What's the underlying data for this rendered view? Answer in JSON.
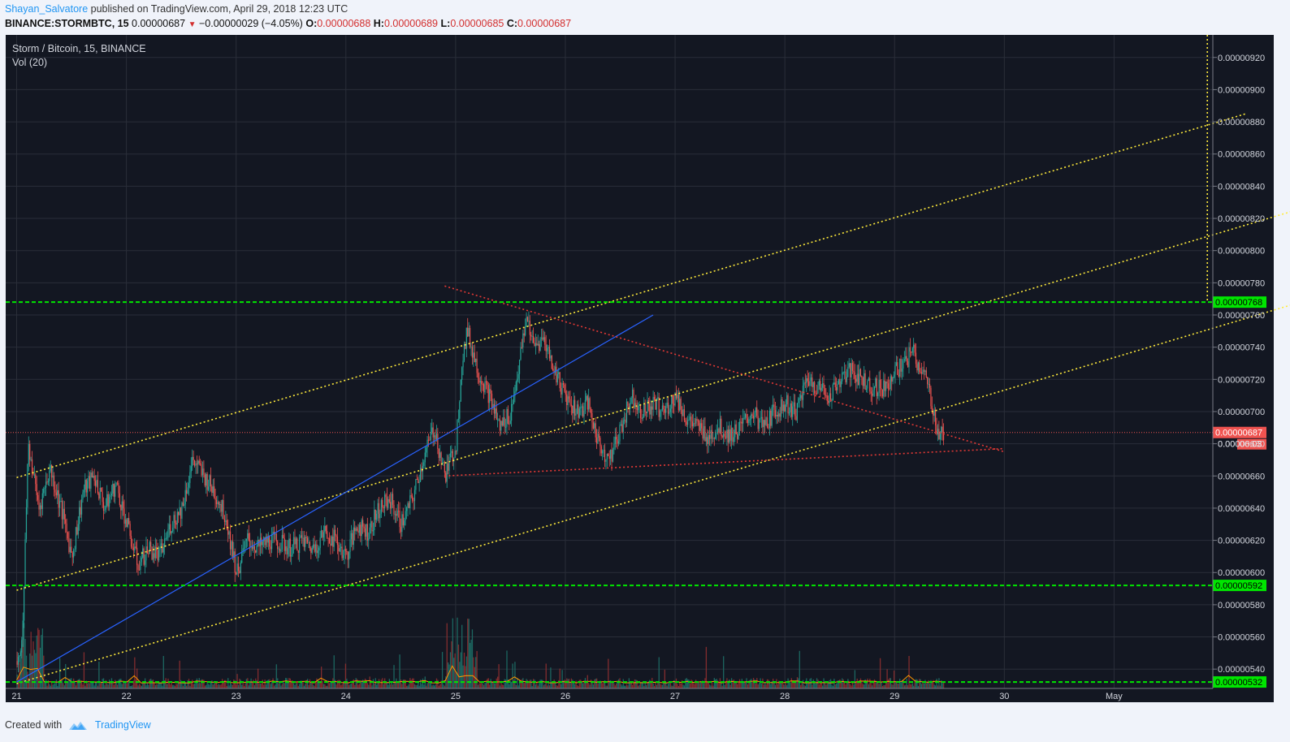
{
  "header": {
    "author": "Shayan_Salvatore",
    "published": "published on TradingView.com, April 29, 2018 12:23 UTC",
    "symbol": "BINANCE:STORMBTC, 15",
    "last": "0.00000687",
    "change": "−0.00000029 (−4.05%)",
    "o_label": "O:",
    "o_value": "0.00000688",
    "h_label": "H:",
    "h_value": "0.00000689",
    "l_label": "L:",
    "l_value": "0.00000685",
    "c_label": "C:",
    "c_value": "0.00000687"
  },
  "footer": {
    "created": "Created with",
    "brand": "TradingView"
  },
  "chart_data": {
    "type": "line",
    "title": "Storm / Bitcoin, 15, BINANCE",
    "indicator": "Vol (20)",
    "y_axis_ticks": [
      "0.00000540",
      "0.00000560",
      "0.00000580",
      "0.00000600",
      "0.00000620",
      "0.00000640",
      "0.00000660",
      "0.00000680",
      "0.00000700",
      "0.00000720",
      "0.00000740",
      "0.00000760",
      "0.00000780",
      "0.00000800",
      "0.00000820",
      "0.00000840",
      "0.00000860",
      "0.00000880",
      "0.00000900",
      "0.00000920"
    ],
    "x_axis_ticks": [
      "21",
      "22",
      "23",
      "24",
      "25",
      "26",
      "27",
      "28",
      "29",
      "30",
      "May"
    ],
    "ylim": [
      5.28e-06,
      9.34e-06
    ],
    "price_line_label": "0.00000687",
    "countdown_label": "06:03",
    "hidden_tick_label": "0.000",
    "horizontal_levels": [
      {
        "value": 7.68e-06,
        "label": "0.00000768"
      },
      {
        "value": 5.92e-06,
        "label": "0.00000592"
      },
      {
        "value": 5.32e-06,
        "label": "0.00000532"
      }
    ],
    "series": [
      {
        "x": [
          21.0,
          21.05,
          21.1,
          21.15,
          21.2,
          21.3,
          21.4,
          21.5,
          21.6,
          21.7,
          21.8,
          21.9,
          22.0,
          22.1,
          22.2,
          22.3,
          22.4,
          22.5,
          22.6,
          22.7,
          22.8,
          22.9,
          23.0,
          23.1,
          23.2,
          23.3,
          23.4,
          23.5,
          23.6,
          23.7,
          23.8,
          23.9,
          24.0,
          24.1,
          24.2,
          24.3,
          24.4,
          24.5,
          24.6,
          24.7,
          24.8,
          24.9,
          25.0,
          25.05,
          25.1,
          25.2,
          25.3,
          25.4,
          25.5,
          25.6,
          25.65,
          25.7,
          25.8,
          25.9,
          26.0,
          26.1,
          26.2,
          26.3,
          26.4,
          26.5,
          26.6,
          26.7,
          26.8,
          26.9,
          27.0,
          27.1,
          27.2,
          27.3,
          27.4,
          27.5,
          27.6,
          27.7,
          27.8,
          27.9,
          28.0,
          28.1,
          28.2,
          28.3,
          28.4,
          28.5,
          28.6,
          28.7,
          28.8,
          28.9,
          29.0,
          29.1,
          29.15,
          29.2,
          29.25,
          29.3,
          29.35,
          29.4,
          29.45
        ],
        "values": [
          5.45e-06,
          5.6e-06,
          6.8e-06,
          6.6e-06,
          6.4e-06,
          6.65e-06,
          6.4e-06,
          6.1e-06,
          6.5e-06,
          6.6e-06,
          6.4e-06,
          6.55e-06,
          6.3e-06,
          6.05e-06,
          6.15e-06,
          6.1e-06,
          6.3e-06,
          6.4e-06,
          6.7e-06,
          6.6e-06,
          6.5e-06,
          6.35e-06,
          6e-06,
          6.2e-06,
          6.15e-06,
          6.2e-06,
          6.18e-06,
          6.15e-06,
          6.2e-06,
          6.15e-06,
          6.25e-06,
          6.2e-06,
          6.1e-06,
          6.3e-06,
          6.25e-06,
          6.4e-06,
          6.45e-06,
          6.3e-06,
          6.45e-06,
          6.7e-06,
          6.9e-06,
          6.6e-06,
          6.8e-06,
          7.3e-06,
          7.5e-06,
          7.25e-06,
          7.1e-06,
          6.9e-06,
          7e-06,
          7.4e-06,
          7.6e-06,
          7.4e-06,
          7.45e-06,
          7.25e-06,
          7.1e-06,
          7e-06,
          7.05e-06,
          6.8e-06,
          6.7e-06,
          6.9e-06,
          7.1e-06,
          7e-06,
          7.05e-06,
          7e-06,
          7.1e-06,
          6.95e-06,
          6.9e-06,
          6.85e-06,
          6.9e-06,
          6.85e-06,
          6.9e-06,
          7e-06,
          6.9e-06,
          7e-06,
          7.05e-06,
          7e-06,
          7.2e-06,
          7.15e-06,
          7.1e-06,
          7.2e-06,
          7.25e-06,
          7.2e-06,
          7.15e-06,
          7.15e-06,
          7.25e-06,
          7.3e-06,
          7.4e-06,
          7.3e-06,
          7.25e-06,
          7.15e-06,
          7e-06,
          6.85e-06,
          6.87e-06
        ]
      }
    ],
    "drawings": [
      {
        "kind": "yellow-channel",
        "points": [
          [
            21.0,
            6.59e-06
          ],
          [
            32.2,
            8.85e-06
          ]
        ]
      },
      {
        "kind": "yellow-channel",
        "points": [
          [
            21.0,
            5.89e-06
          ],
          [
            32.8,
            8.28e-06
          ]
        ]
      },
      {
        "kind": "yellow-channel",
        "points": [
          [
            21.0,
            5.31e-06
          ],
          [
            32.8,
            7.7e-06
          ]
        ]
      },
      {
        "kind": "yellow-vertical",
        "points": [
          [
            31.85,
            9.34e-06
          ],
          [
            31.85,
            7.68e-06
          ]
        ]
      },
      {
        "kind": "blue-trend",
        "points": [
          [
            21.0,
            5.32e-06
          ],
          [
            26.8,
            7.6e-06
          ]
        ]
      },
      {
        "kind": "red-triangle",
        "points": [
          [
            24.9,
            7.78e-06
          ],
          [
            30.0,
            6.75e-06
          ]
        ]
      },
      {
        "kind": "red-triangle",
        "points": [
          [
            24.9,
            6.6e-06
          ],
          [
            30.0,
            6.77e-06
          ]
        ]
      }
    ],
    "colors": {
      "background": "#131722",
      "grid": "#2a2e39",
      "up": "#26a69a",
      "down": "#ef5350",
      "level": "#00e600",
      "channel": "#ffeb3b",
      "trend": "#2962ff",
      "triangle": "#e53935",
      "volume_ma": "#ff9800",
      "axis_text": "#d1d4dc"
    }
  }
}
